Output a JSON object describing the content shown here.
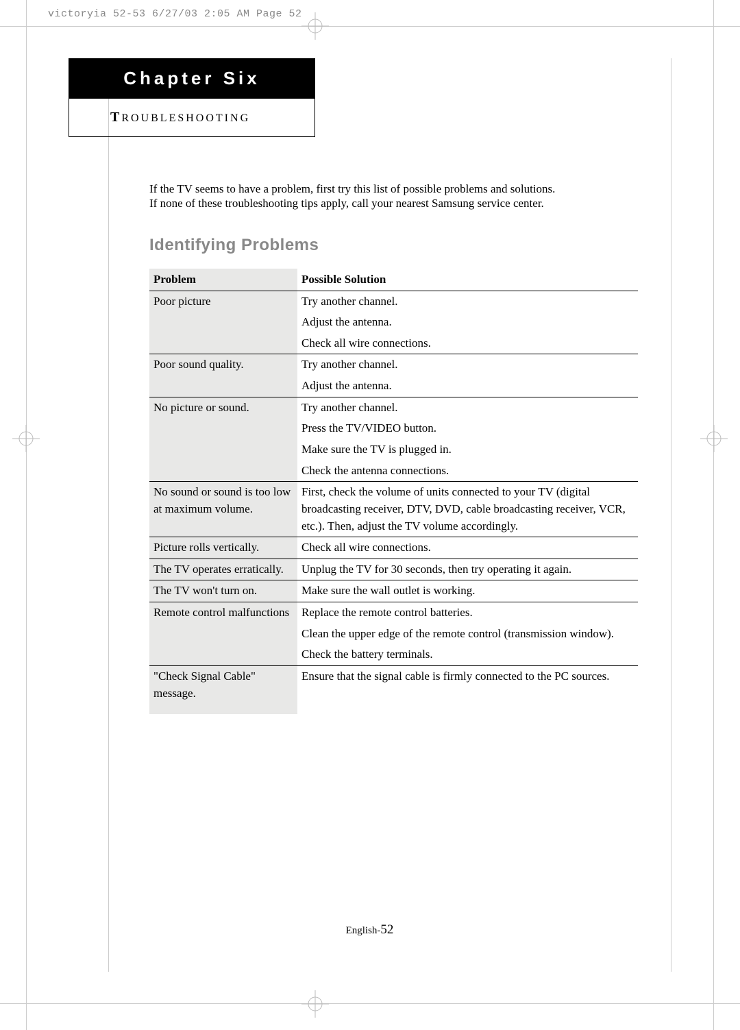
{
  "slug": "victoryia 52-53  6/27/03 2:05 AM  Page 52",
  "chapter": {
    "title": "Chapter Six",
    "subtitle_cap": "T",
    "subtitle_rest": "ROUBLESHOOTING"
  },
  "intro_line1": "If the TV seems to have a problem, first try this list of possible problems and solutions.",
  "intro_line2": "If none of these troubleshooting tips apply, call your nearest Samsung service center.",
  "section_heading": "Identifying Problems",
  "table": {
    "head_problem": "Problem",
    "head_solution": "Possible Solution",
    "rows": [
      {
        "problem": "Poor picture",
        "solutions": [
          "Try another channel.",
          "Adjust the antenna.",
          "Check all wire connections."
        ]
      },
      {
        "problem": "Poor sound quality.",
        "solutions": [
          "Try another channel.",
          "Adjust the antenna."
        ]
      },
      {
        "problem": "No picture or sound.",
        "solutions": [
          "Try another channel.",
          "Press the TV/VIDEO button.",
          "Make sure the TV is plugged in.",
          "Check the antenna connections."
        ]
      },
      {
        "problem": "No sound or sound is too low at maximum  volume.",
        "solutions": [
          "First, check the volume of units connected to your TV (digital broadcasting receiver, DTV, DVD, cable broadcasting receiver, VCR, etc.). Then, adjust the TV volume accordingly."
        ]
      },
      {
        "problem": "Picture rolls vertically.",
        "solutions": [
          "Check all wire connections."
        ]
      },
      {
        "problem": "The TV operates erratically.",
        "solutions": [
          "Unplug the TV for 30 seconds, then try operating it again."
        ]
      },
      {
        "problem": "The TV won't turn on.",
        "solutions": [
          "Make sure the wall outlet is working."
        ]
      },
      {
        "problem": "Remote control malfunctions",
        "solutions": [
          "Replace the remote control batteries.",
          "Clean the upper edge of the remote control (transmission window).",
          "Check the battery terminals."
        ]
      },
      {
        "problem": "\"Check Signal Cable\" message.",
        "solutions": [
          "Ensure that the signal cable is firmly connected to the PC sources."
        ]
      }
    ]
  },
  "footer_lang": "English-",
  "footer_page": "52",
  "colors": {
    "crop": "#cccccc",
    "slug": "#888888",
    "heading_gray": "#888888",
    "shade": "#e8e8e7"
  }
}
